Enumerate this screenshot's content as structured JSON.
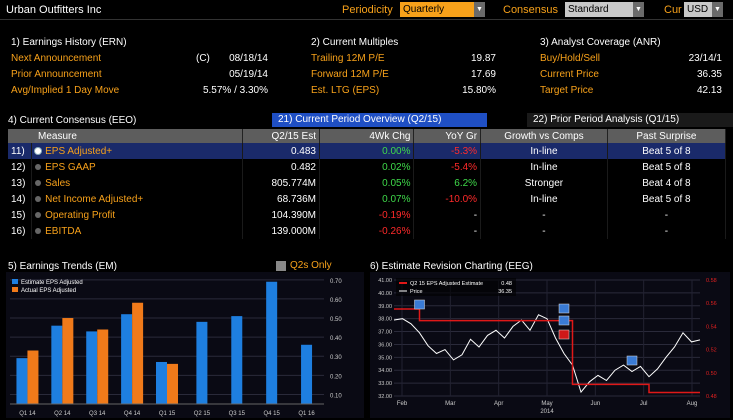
{
  "topbar": {
    "title": "Urban Outfitters Inc",
    "periodicity_label": "Periodicity",
    "periodicity_value": "Quarterly",
    "consensus_label": "Consensus",
    "consensus_value": "Standard",
    "currency_label": "Cur",
    "currency_value": "USD"
  },
  "earnings_history": {
    "title": "1) Earnings History (ERN)",
    "rows": [
      {
        "label": "Next Announcement",
        "prefix": "(C)",
        "value": "08/18/14"
      },
      {
        "label": "Prior Announcement",
        "prefix": "",
        "value": "05/19/14"
      },
      {
        "label": "Avg/Implied 1 Day Move",
        "prefix": "",
        "value": "5.57% / 3.30%"
      }
    ]
  },
  "current_multiples": {
    "title": "2) Current Multiples",
    "rows": [
      {
        "label": "Trailing 12M P/E",
        "value": "19.87"
      },
      {
        "label": "Forward 12M P/E",
        "value": "17.69"
      },
      {
        "label": "Est. LTG (EPS)",
        "value": "15.80%"
      }
    ]
  },
  "analyst_coverage": {
    "title": "3) Analyst Coverage (ANR)",
    "rows": [
      {
        "label": "Buy/Hold/Sell",
        "value": "23/14/1"
      },
      {
        "label": "Current Price",
        "value": "36.35"
      },
      {
        "label": "Target Price",
        "value": "42.13"
      }
    ]
  },
  "consensus": {
    "title": "4) Current Consensus (EEO)",
    "tab_current": "21) Current Period Overview (Q2/15)",
    "tab_prior": "22) Prior Period Analysis (Q1/15)",
    "headers": [
      "Measure",
      "Q2/15 Est",
      "4Wk Chg",
      "YoY Gr",
      "Growth vs Comps",
      "Past Surprise"
    ],
    "rows": [
      {
        "num": "11)",
        "measure": "EPS Adjusted+",
        "est": "0.483",
        "chg": "0.00%",
        "chg_color": "green",
        "yoy": "-5.3%",
        "yoy_color": "red",
        "comp": "In-line",
        "surprise": "Beat 5 of 8"
      },
      {
        "num": "12)",
        "measure": "EPS GAAP",
        "est": "0.482",
        "chg": "0.02%",
        "chg_color": "green",
        "yoy": "-5.4%",
        "yoy_color": "red",
        "comp": "In-line",
        "surprise": "Beat 5 of 8"
      },
      {
        "num": "13)",
        "measure": "Sales",
        "est": "805.774M",
        "chg": "0.05%",
        "chg_color": "green",
        "yoy": "6.2%",
        "yoy_color": "green",
        "comp": "Stronger",
        "surprise": "Beat 4 of 8"
      },
      {
        "num": "14)",
        "measure": "Net Income Adjusted+",
        "est": "68.736M",
        "chg": "0.07%",
        "chg_color": "green",
        "yoy": "-10.0%",
        "yoy_color": "red",
        "comp": "In-line",
        "surprise": "Beat 5 of 8"
      },
      {
        "num": "15)",
        "measure": "Operating Profit",
        "est": "104.390M",
        "chg": "-0.19%",
        "chg_color": "red",
        "yoy": "-",
        "yoy_color": "white",
        "comp": "-",
        "surprise": "-"
      },
      {
        "num": "16)",
        "measure": "EBITDA",
        "est": "139.000M",
        "chg": "-0.26%",
        "chg_color": "red",
        "yoy": "-",
        "yoy_color": "white",
        "comp": "-",
        "surprise": "-"
      }
    ]
  },
  "earnings_trends": {
    "title": "5) Earnings Trends (EM)",
    "q2s_label": "Q2s Only"
  },
  "estimate_revision": {
    "title": "6) Estimate Revision Charting (EEG)"
  },
  "colors": {
    "orange": "#f7a11a",
    "estimate_blue": "#1e7fe0",
    "actual_orange": "#f07a1a",
    "price_white": "#ffffff",
    "estimate_red": "#e01818"
  },
  "chart_data": [
    {
      "type": "bar",
      "categories": [
        "Q1 14",
        "Q2 14",
        "Q3 14",
        "Q4 14",
        "Q1 15",
        "Q2 15",
        "Q3 15",
        "Q4 15",
        "Q1 16"
      ],
      "series": [
        {
          "name": "Estimate EPS Adjusted",
          "values": [
            0.29,
            0.46,
            0.43,
            0.52,
            0.27,
            0.48,
            0.51,
            0.69,
            0.36
          ]
        },
        {
          "name": "Actual EPS Adjusted",
          "values": [
            0.33,
            0.5,
            0.44,
            0.58,
            0.26,
            null,
            null,
            null,
            null
          ]
        }
      ],
      "ylim": [
        0.05,
        0.72
      ],
      "yticks": [
        "0.10",
        "0.20",
        "0.30",
        "0.40",
        "0.50",
        "0.60",
        "0.70"
      ],
      "legend": "top-left"
    },
    {
      "type": "line",
      "x_labels": [
        "Feb",
        "Mar",
        "Apr",
        "May",
        "Jun",
        "Jul",
        "Aug"
      ],
      "x_sublabel": "2014",
      "legend_entries": [
        {
          "name": "Q2 15 EPS Adjusted Estimate",
          "value": "0.48"
        },
        {
          "name": "Price",
          "value": "36.35"
        }
      ],
      "left_ticks": [
        "32.00",
        "33.00",
        "34.00",
        "35.00",
        "36.00",
        "37.00",
        "38.00",
        "39.00",
        "40.00",
        "41.00"
      ],
      "right_ticks": [
        "0.48",
        "0.50",
        "0.52",
        "0.54",
        "0.56",
        "0.58"
      ],
      "price": [
        37.9,
        38.0,
        37.6,
        36.9,
        35.9,
        35.3,
        35.6,
        34.8,
        35.2,
        36.4,
        35.8,
        36.7,
        37.1,
        36.5,
        37.4,
        37.9,
        37.1,
        38.3,
        38.0,
        36.5,
        35.3,
        34.4,
        32.3,
        33.1,
        33.6,
        33.2,
        34.0,
        34.4,
        33.9,
        34.3,
        33.5,
        34.1,
        35.0,
        35.8,
        36.9,
        36.2,
        36.35
      ],
      "estimate": [
        0.555,
        0.555,
        0.555,
        0.545,
        0.545,
        0.545,
        0.545,
        0.545,
        0.545,
        0.545,
        0.545,
        0.545,
        0.545,
        0.545,
        0.545,
        0.545,
        0.545,
        0.545,
        0.545,
        0.545,
        0.545,
        0.49,
        0.49,
        0.49,
        0.49,
        0.49,
        0.49,
        0.49,
        0.49,
        0.49,
        0.483,
        0.483,
        0.483,
        0.483,
        0.483,
        0.483,
        0.483
      ]
    }
  ]
}
